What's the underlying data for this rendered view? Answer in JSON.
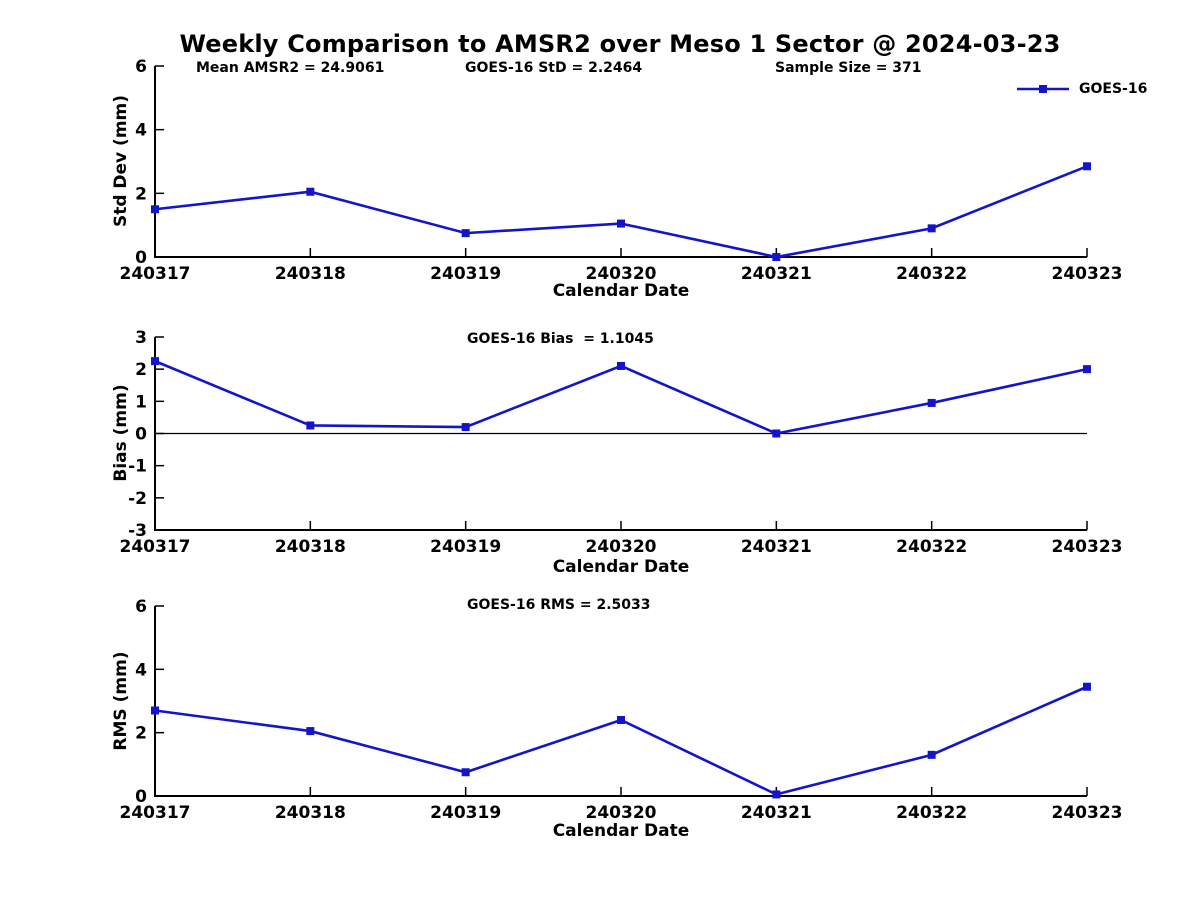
{
  "title": "Weekly Comparison to AMSR2 over Meso 1 Sector @ 2024-03-23",
  "stats": {
    "mean_amsr2": "Mean AMSR2 = 24.9061",
    "goes16_std": "GOES-16 StD = 2.2464",
    "sample_size": "Sample Size = 371"
  },
  "legend": {
    "label": "GOES-16"
  },
  "chart_data": {
    "type": "line",
    "series_name": "GOES-16",
    "color": "#1414CD",
    "marker": "square",
    "grid": false,
    "legend_position": "top-right",
    "categories": [
      "240317",
      "240318",
      "240319",
      "240320",
      "240321",
      "240322",
      "240323"
    ],
    "xlabel": "Calendar Date",
    "subplots": [
      {
        "name": "std-dev",
        "ylabel": "Std Dev (mm)",
        "annotation": "",
        "ylim": [
          0,
          6
        ],
        "yticks": [
          0,
          2,
          4,
          6
        ],
        "zero_line": false,
        "values": [
          1.5,
          2.05,
          0.75,
          1.05,
          0.0,
          0.9,
          2.85
        ]
      },
      {
        "name": "bias",
        "ylabel": "Bias (mm)",
        "annotation": "GOES-16 Bias  = 1.1045",
        "ylim": [
          -3,
          3
        ],
        "yticks": [
          3,
          2,
          1,
          0,
          -1,
          -2,
          -3
        ],
        "zero_line": true,
        "values": [
          2.25,
          0.25,
          0.2,
          2.1,
          0.0,
          0.95,
          2.0
        ]
      },
      {
        "name": "rms",
        "ylabel": "RMS (mm)",
        "annotation": "GOES-16 RMS = 2.5033",
        "ylim": [
          0,
          6
        ],
        "yticks": [
          0,
          2,
          4,
          6
        ],
        "zero_line": false,
        "values": [
          2.7,
          2.05,
          0.75,
          2.4,
          0.05,
          1.3,
          3.45
        ]
      }
    ]
  }
}
